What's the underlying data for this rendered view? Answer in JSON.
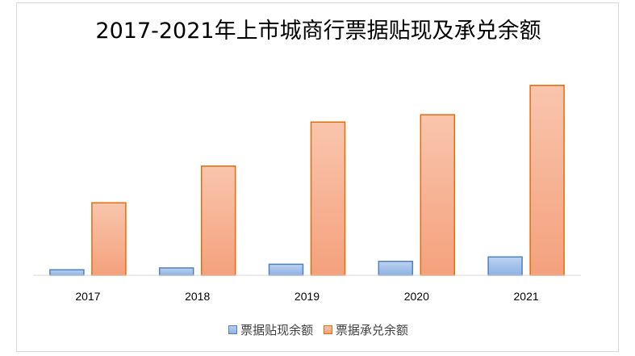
{
  "chart_data": {
    "type": "bar",
    "title": "2017-2021年上市城商行票据贴现及承兑余额",
    "categories": [
      "2017",
      "2018",
      "2019",
      "2020",
      "2021"
    ],
    "series": [
      {
        "name": "票据贴现余额",
        "values": [
          300,
          400,
          600,
          760,
          1000
        ],
        "color": "#4f81bd"
      },
      {
        "name": "票据承兑余额",
        "values": [
          3950,
          5950,
          8350,
          8750,
          10350
        ],
        "color": "#e46c0a"
      }
    ],
    "ylim": [
      0,
      11000
    ],
    "legend_position": "bottom",
    "grid": false
  }
}
